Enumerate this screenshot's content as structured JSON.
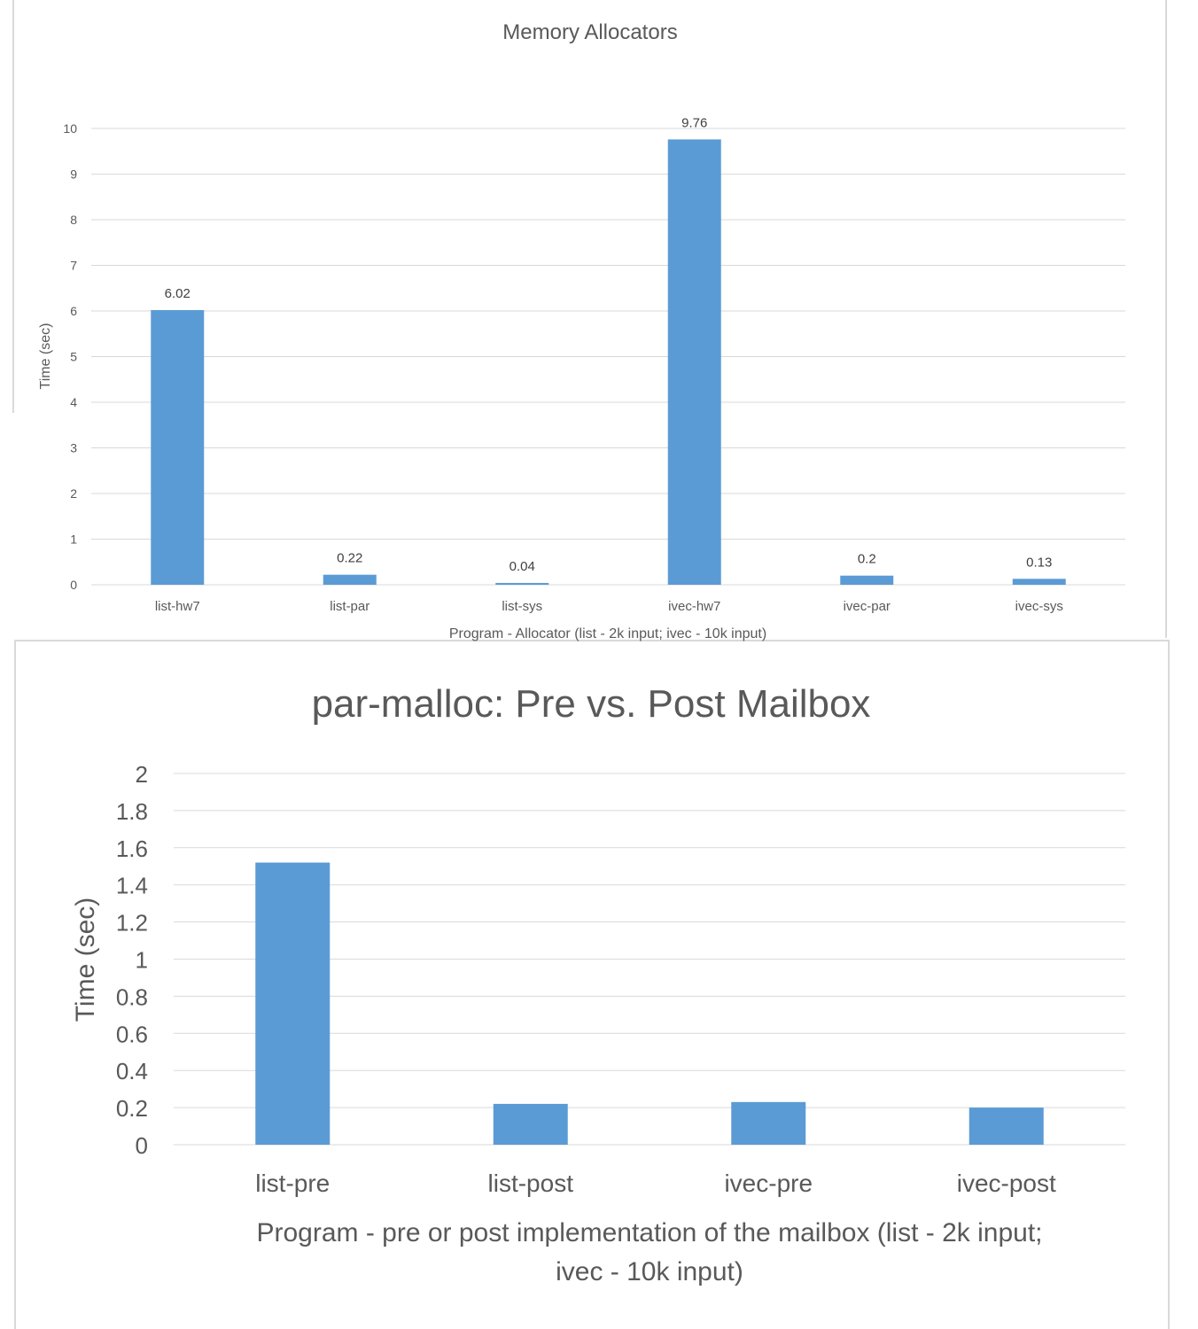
{
  "chart_data": [
    {
      "type": "bar",
      "title": "Memory Allocators",
      "xlabel": "Program - Allocator (list - 2k input; ivec - 10k input)",
      "ylabel": "Time (sec)",
      "ylim": [
        0,
        10
      ],
      "yticks": [
        "0",
        "1",
        "2",
        "3",
        "4",
        "5",
        "6",
        "7",
        "8",
        "9",
        "10"
      ],
      "grid": true,
      "categories": [
        "list-hw7",
        "list-par",
        "list-sys",
        "ivec-hw7",
        "ivec-par",
        "ivec-sys"
      ],
      "values": [
        6.02,
        0.22,
        0.04,
        9.76,
        0.2,
        0.13
      ],
      "data_labels": [
        "6.02",
        "0.22",
        "0.04",
        "9.76",
        "0.2",
        "0.13"
      ],
      "color": "#5b9bd5"
    },
    {
      "type": "bar",
      "title": "par-malloc: Pre vs. Post Mailbox",
      "xlabel_lines": [
        "Program - pre or post implementation of the mailbox (list - 2k input;",
        "ivec - 10k input)"
      ],
      "ylabel": "Time (sec)",
      "ylim": [
        0,
        2
      ],
      "yticks": [
        "0",
        "0.2",
        "0.4",
        "0.6",
        "0.8",
        "1",
        "1.2",
        "1.4",
        "1.6",
        "1.8",
        "2"
      ],
      "grid": true,
      "categories": [
        "list-pre",
        "list-post",
        "ivec-pre",
        "ivec-post"
      ],
      "values": [
        1.52,
        0.22,
        0.23,
        0.2
      ],
      "color": "#5b9bd5"
    }
  ]
}
